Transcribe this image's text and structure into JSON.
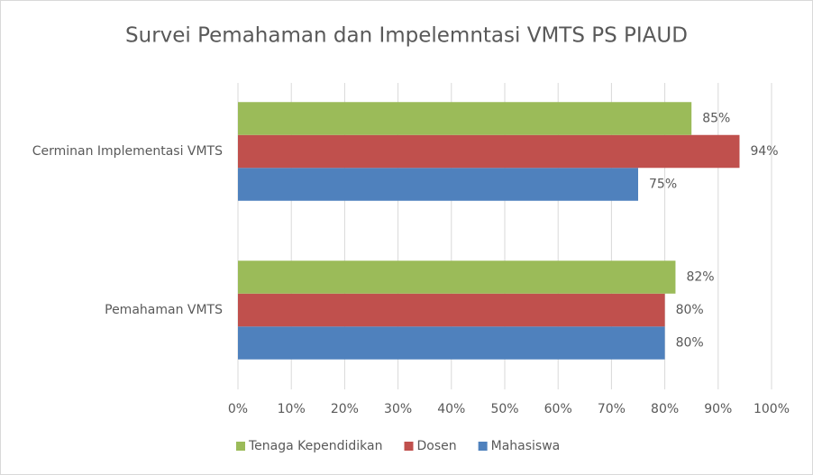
{
  "chart_data": {
    "type": "bar",
    "orientation": "horizontal",
    "title": "Survei Pemahaman dan Impelemntasi VMTS PS PIAUD",
    "categories": [
      "Pemahaman VMTS",
      "Cerminan Implementasi VMTS"
    ],
    "series": [
      {
        "name": "Mahasiswa",
        "color": "#4f81bd",
        "values": [
          80,
          75
        ],
        "value_labels": [
          "80%",
          "75%"
        ]
      },
      {
        "name": "Dosen",
        "color": "#c0504d",
        "values": [
          80,
          94
        ],
        "value_labels": [
          "80%",
          "94%"
        ]
      },
      {
        "name": "Tenaga Kependidikan",
        "color": "#9bbb59",
        "values": [
          82,
          85
        ],
        "value_labels": [
          "82%",
          "85%"
        ]
      }
    ],
    "xlim": [
      0,
      100
    ],
    "xticks": [
      {
        "value": 0,
        "label": "0%"
      },
      {
        "value": 10,
        "label": "10%"
      },
      {
        "value": 20,
        "label": "20%"
      },
      {
        "value": 30,
        "label": "30%"
      },
      {
        "value": 40,
        "label": "40%"
      },
      {
        "value": 50,
        "label": "50%"
      },
      {
        "value": 60,
        "label": "60%"
      },
      {
        "value": 70,
        "label": "70%"
      },
      {
        "value": 80,
        "label": "80%"
      },
      {
        "value": 90,
        "label": "90%"
      },
      {
        "value": 100,
        "label": "100%"
      }
    ],
    "grid": true,
    "legend": "bottom"
  }
}
